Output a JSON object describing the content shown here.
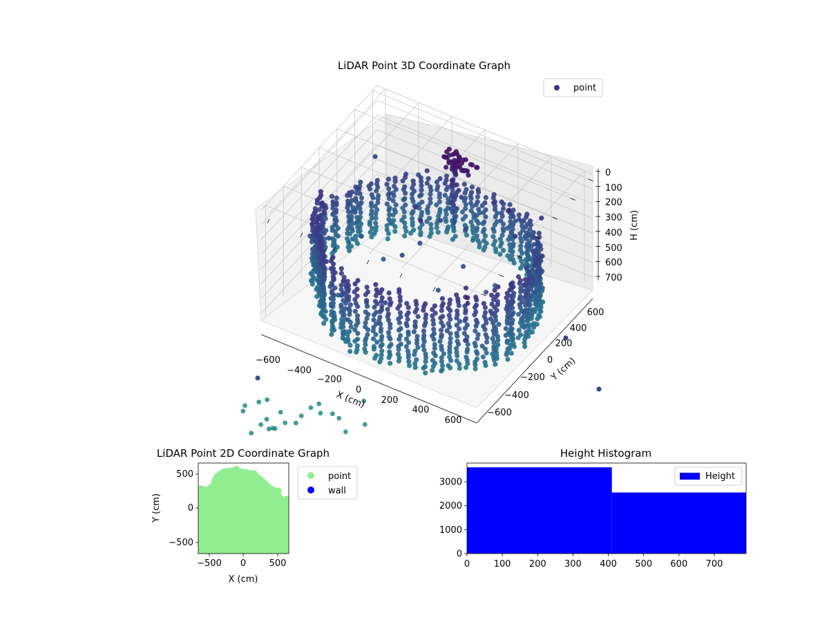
{
  "chart_data": [
    {
      "type": "scatter",
      "projection": "3d",
      "title": "LiDAR Point 3D Coordinate Graph",
      "xlabel": "X (cm)",
      "ylabel": "Y (cm)",
      "zlabel": "H (cm)",
      "x_ticks": [
        "−600",
        "−400",
        "−200",
        "0",
        "200",
        "400",
        "600"
      ],
      "y_ticks": [
        "−600",
        "−400",
        "−200",
        "0",
        "200",
        "400",
        "600"
      ],
      "z_ticks": [
        "0",
        "100",
        "200",
        "300",
        "400",
        "500",
        "600",
        "700"
      ],
      "xlim": [
        -650,
        650
      ],
      "ylim": [
        -650,
        650
      ],
      "zlim": [
        0,
        750
      ],
      "z_inverted": true,
      "legend": {
        "entries": [
          "point"
        ],
        "position": "top-right"
      },
      "colormap": "viridis",
      "marker_color": "#3f2f86",
      "grid": true,
      "point_cloud_summary": "ring-shaped wall of points around the origin, radius about 600 cm, heights from 0 to 750 cm, plus a central pillar and scattered outliers"
    },
    {
      "type": "scatter",
      "title": "LiDAR Point 2D Coordinate Graph",
      "xlabel": "X (cm)",
      "ylabel": "Y (cm)",
      "x_ticks": [
        "−500",
        "0",
        "500"
      ],
      "y_ticks": [
        "−500",
        "0",
        "500"
      ],
      "xlim": [
        -650,
        650
      ],
      "ylim": [
        -650,
        650
      ],
      "series": [
        {
          "name": "point",
          "color": "#90ee90"
        },
        {
          "name": "wall",
          "color": "#0000ff"
        }
      ],
      "legend": {
        "position": "outside-right"
      }
    },
    {
      "type": "bar",
      "subtype": "histogram",
      "title": "Height Histogram",
      "x_ticks": [
        "0",
        "100",
        "200",
        "300",
        "400",
        "500",
        "600",
        "700"
      ],
      "y_ticks": [
        "0",
        "1000",
        "2000",
        "3000"
      ],
      "bins": [
        {
          "start": 0,
          "end": 410,
          "count": 3600
        },
        {
          "start": 410,
          "end": 790,
          "count": 2550
        }
      ],
      "xlim": [
        0,
        790
      ],
      "ylim": [
        0,
        3780
      ],
      "series": [
        {
          "name": "Height",
          "color": "#0000ff"
        }
      ],
      "legend": {
        "position": "top-right"
      }
    }
  ]
}
